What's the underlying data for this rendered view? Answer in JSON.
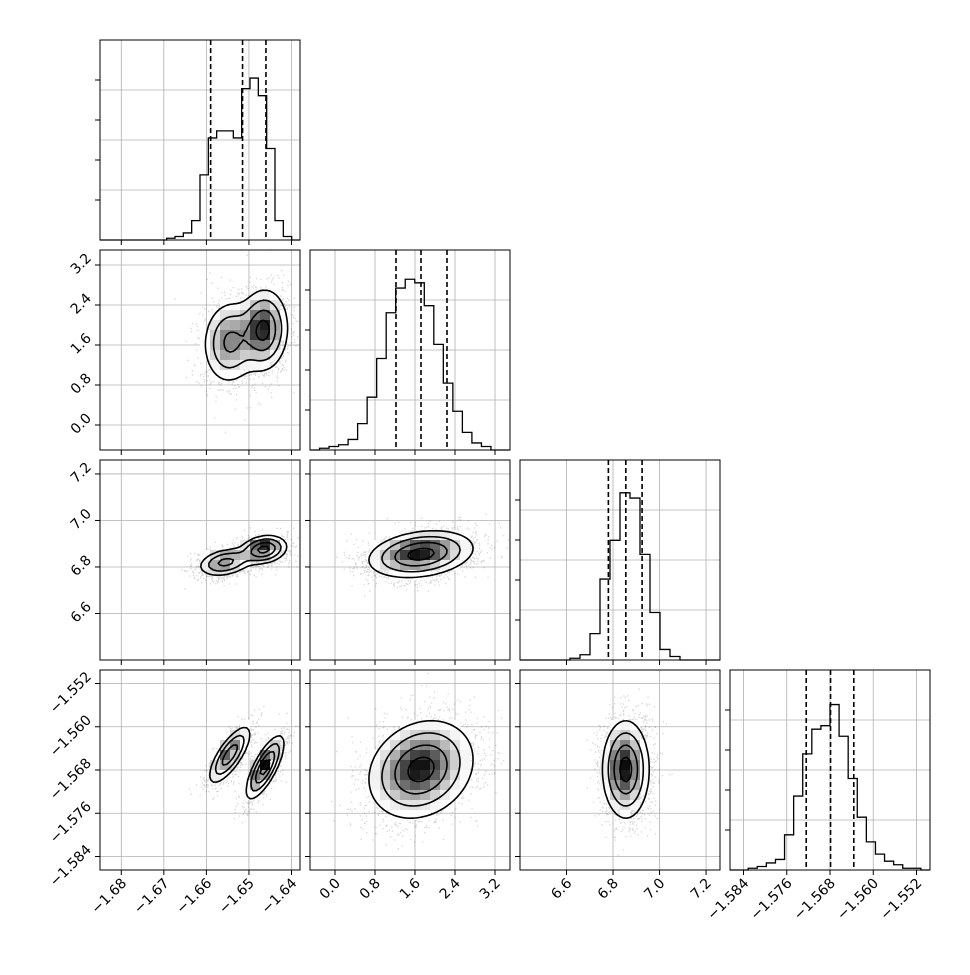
{
  "chart_data": {
    "type": "corner",
    "n_params": 4,
    "params": [
      {
        "range": [
          -1.685,
          -1.638
        ],
        "ticks": [
          -1.68,
          -1.67,
          -1.66,
          -1.65,
          -1.64
        ],
        "ticklabels": [
          "−1.68",
          "−1.67",
          "−1.66",
          "−1.65",
          "−1.64"
        ],
        "quantiles": [
          -1.659,
          -1.6515,
          -1.646
        ],
        "hist": [
          0,
          0,
          0,
          0,
          0,
          0,
          0,
          0,
          0.01,
          0.02,
          0.04,
          0.11,
          0.37,
          0.58,
          0.62,
          0.62,
          0.58,
          0.86,
          0.92,
          0.82,
          0.52,
          0.11,
          0.02,
          0
        ]
      },
      {
        "range": [
          -0.5,
          3.5
        ],
        "ticks": [
          0.0,
          0.8,
          1.6,
          2.4,
          3.2
        ],
        "ticklabels": [
          "0.0",
          "0.8",
          "1.6",
          "2.4",
          "3.2"
        ],
        "quantiles": [
          1.22,
          1.72,
          2.24
        ],
        "hist": [
          0,
          0.01,
          0.02,
          0.03,
          0.06,
          0.15,
          0.3,
          0.52,
          0.78,
          0.92,
          0.97,
          0.95,
          0.82,
          0.6,
          0.38,
          0.22,
          0.1,
          0.04,
          0.02,
          0,
          0
        ]
      },
      {
        "range": [
          6.4,
          7.26
        ],
        "ticks": [
          6.6,
          6.8,
          7.0,
          7.2
        ],
        "ticklabels": [
          "6.6",
          "6.8",
          "7.0",
          "7.2"
        ],
        "quantiles": [
          6.78,
          6.855,
          6.925
        ],
        "hist": [
          0,
          0,
          0,
          0,
          0,
          0.01,
          0.03,
          0.15,
          0.46,
          0.68,
          0.95,
          0.92,
          0.6,
          0.27,
          0.06,
          0.02,
          0,
          0,
          0,
          0
        ]
      },
      {
        "range": [
          -1.5865,
          -1.5495
        ],
        "ticks": [
          -1.584,
          -1.576,
          -1.568,
          -1.56,
          -1.552
        ],
        "ticklabels": [
          "−1.584",
          "−1.576",
          "−1.568",
          "−1.560",
          "−1.552"
        ],
        "quantiles": [
          -1.5724,
          -1.5679,
          -1.5636
        ],
        "hist": [
          0,
          0,
          0.01,
          0.02,
          0.04,
          0.06,
          0.2,
          0.42,
          0.66,
          0.8,
          0.82,
          0.94,
          0.76,
          0.52,
          0.3,
          0.16,
          0.09,
          0.05,
          0.03,
          0.01,
          0.01,
          0
        ]
      }
    ],
    "pairs": [
      {
        "row": 1,
        "col": 0,
        "components": [
          {
            "mx": -1.6545,
            "my": 1.65,
            "sx": 0.0032,
            "sy": 0.42,
            "rho": 0.05,
            "w": 0.45
          },
          {
            "mx": -1.6465,
            "my": 1.9,
            "sx": 0.0028,
            "sy": 0.4,
            "rho": 0.05,
            "w": 0.55
          }
        ]
      },
      {
        "row": 2,
        "col": 0,
        "components": [
          {
            "mx": -1.6555,
            "my": 6.82,
            "sx": 0.0032,
            "sy": 0.03,
            "rho": 0.3,
            "w": 0.45
          },
          {
            "mx": -1.6465,
            "my": 6.875,
            "sx": 0.0027,
            "sy": 0.03,
            "rho": 0.2,
            "w": 0.55
          }
        ]
      },
      {
        "row": 2,
        "col": 1,
        "components": [
          {
            "mx": 1.72,
            "my": 6.855,
            "sx": 0.52,
            "sy": 0.05,
            "rho": 0.25,
            "w": 1
          }
        ]
      },
      {
        "row": 3,
        "col": 0,
        "components": [
          {
            "mx": -1.6545,
            "my": -1.5652,
            "sx": 0.0025,
            "sy": 0.0027,
            "rho": 0.75,
            "w": 0.45
          },
          {
            "mx": -1.6462,
            "my": -1.5675,
            "sx": 0.0022,
            "sy": 0.0029,
            "rho": 0.75,
            "w": 0.55
          }
        ]
      },
      {
        "row": 3,
        "col": 1,
        "components": [
          {
            "mx": 1.72,
            "my": -1.5679,
            "sx": 0.52,
            "sy": 0.0045,
            "rho": 0.2,
            "w": 1
          }
        ]
      },
      {
        "row": 3,
        "col": 2,
        "components": [
          {
            "mx": 6.855,
            "my": -1.5679,
            "sx": 0.05,
            "sy": 0.0045,
            "rho": 0.0,
            "w": 1
          }
        ]
      }
    ],
    "contour_levels": [
      0.1353,
      0.3247,
      0.6065,
      0.8825
    ]
  }
}
